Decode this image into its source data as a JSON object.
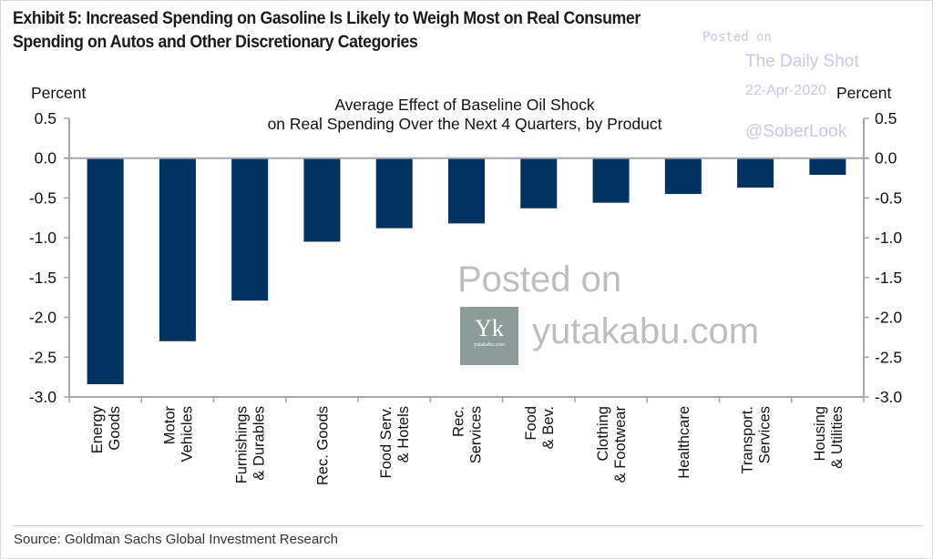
{
  "header": {
    "title_line1": "Exhibit 5: Increased Spending on Gasoline Is Likely to Weigh Most on Real Consumer",
    "title_line2": "Spending on Autos and Other Discretionary Categories"
  },
  "watermarks": {
    "posted_on_small": "Posted on",
    "daily_shot": "The Daily Shot",
    "date": "22-Apr-2020",
    "handle": "@SoberLook",
    "posted_on_big": "Posted on",
    "site": "yutakabu.com",
    "logo_initials": "Yk",
    "logo_caption": "yutakabu.com"
  },
  "footer": {
    "source": "Source: Goldman Sachs Global Investment Research"
  },
  "chart_data": {
    "type": "bar",
    "title": "Average Effect of Baseline Oil Shock",
    "subtitle": "on Real Spending Over the Next 4 Quarters, by Product",
    "ylabel_left": "Percent",
    "ylabel_right": "Percent",
    "xlabel": "",
    "ylim": [
      -3.0,
      0.5
    ],
    "yticks": [
      0.5,
      0.0,
      -0.5,
      -1.0,
      -1.5,
      -2.0,
      -2.5,
      -3.0
    ],
    "ytick_labels": [
      "0.5",
      "0.0",
      "-0.5",
      "-1.0",
      "-1.5",
      "-2.0",
      "-2.5",
      "-3.0"
    ],
    "grid": false,
    "bar_color": "#003361",
    "categories": [
      [
        "Energy",
        "Goods"
      ],
      [
        "Motor",
        "Vehicles"
      ],
      [
        "Furnishings",
        "& Durables"
      ],
      [
        "Rec. Goods"
      ],
      [
        "Food Serv.",
        "& Hotels"
      ],
      [
        "Rec.",
        "Services"
      ],
      [
        "Food",
        "& Bev."
      ],
      [
        "Clothing",
        "& Footwear"
      ],
      [
        "Healthcare"
      ],
      [
        "Transport.",
        "Services"
      ],
      [
        "Housing",
        "& Utilities"
      ]
    ],
    "values": [
      -2.84,
      -2.3,
      -1.79,
      -1.05,
      -0.88,
      -0.82,
      -0.63,
      -0.56,
      -0.45,
      -0.37,
      -0.21
    ]
  }
}
